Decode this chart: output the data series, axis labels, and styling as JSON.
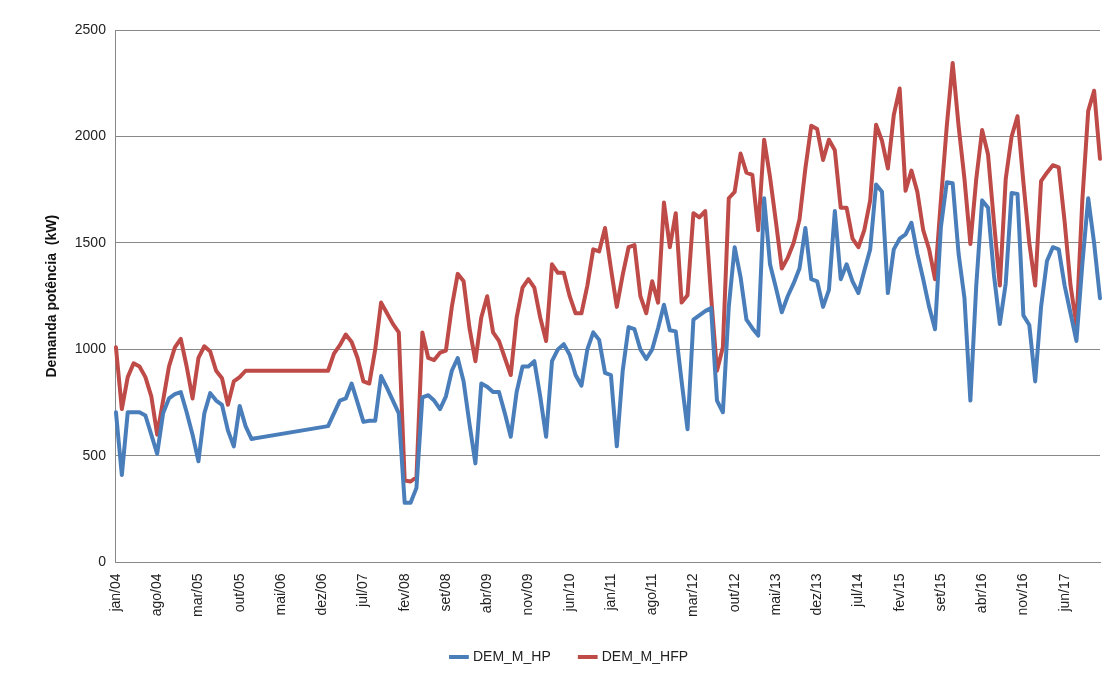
{
  "chart_data": {
    "type": "line",
    "ylabel": "Demanda potência  (kW)",
    "categories": [
      "jan/04",
      null,
      null,
      null,
      null,
      null,
      null,
      "ago/04",
      null,
      null,
      null,
      null,
      null,
      null,
      "mar/05",
      null,
      null,
      null,
      null,
      null,
      null,
      "out/05",
      null,
      null,
      null,
      null,
      null,
      null,
      "mai/06",
      null,
      null,
      null,
      null,
      null,
      null,
      "dez/06",
      null,
      null,
      null,
      null,
      null,
      null,
      "jul/07",
      null,
      null,
      null,
      null,
      null,
      null,
      "fev/08",
      null,
      null,
      null,
      null,
      null,
      null,
      "set/08",
      null,
      null,
      null,
      null,
      null,
      null,
      "abr/09",
      null,
      null,
      null,
      null,
      null,
      null,
      "nov/09",
      null,
      null,
      null,
      null,
      null,
      null,
      "jun/10",
      null,
      null,
      null,
      null,
      null,
      null,
      "jan/11",
      null,
      null,
      null,
      null,
      null,
      null,
      "ago/11",
      null,
      null,
      null,
      null,
      null,
      null,
      "mar/12",
      null,
      null,
      null,
      null,
      null,
      null,
      "out/12",
      null,
      null,
      null,
      null,
      null,
      null,
      "mai/13",
      null,
      null,
      null,
      null,
      null,
      null,
      "dez/13",
      null,
      null,
      null,
      null,
      null,
      null,
      "jul/14",
      null,
      null,
      null,
      null,
      null,
      null,
      "fev/15",
      null,
      null,
      null,
      null,
      null,
      null,
      "set/15",
      null,
      null,
      null,
      null,
      null,
      null,
      "abr/16",
      null,
      null,
      null,
      null,
      null,
      null,
      "nov/16",
      null,
      null,
      null,
      null,
      null,
      null,
      "jun/17",
      null,
      null,
      null,
      null,
      null,
      null
    ],
    "series": [
      {
        "name": "DEM_M_HP",
        "color": "#4a7ebb",
        "values": [
          705,
          410,
          705,
          705,
          705,
          690,
          600,
          510,
          700,
          770,
          790,
          800,
          705,
          600,
          475,
          700,
          795,
          760,
          740,
          620,
          545,
          735,
          640,
          580,
          null,
          null,
          null,
          null,
          null,
          null,
          null,
          null,
          null,
          null,
          null,
          null,
          640,
          700,
          760,
          770,
          840,
          750,
          660,
          665,
          665,
          875,
          820,
          760,
          700,
          280,
          280,
          350,
          775,
          785,
          760,
          720,
          780,
          900,
          960,
          850,
          650,
          465,
          840,
          825,
          800,
          800,
          700,
          590,
          800,
          920,
          920,
          945,
          780,
          590,
          945,
          1000,
          1025,
          975,
          880,
          830,
          1000,
          1080,
          1045,
          890,
          880,
          545,
          900,
          1105,
          1095,
          1000,
          955,
          1000,
          1100,
          1210,
          1090,
          1085,
          850,
          625,
          1140,
          1160,
          1180,
          1195,
          760,
          705,
          1200,
          1480,
          1340,
          1140,
          1100,
          1065,
          1710,
          1400,
          1290,
          1175,
          1250,
          1310,
          1380,
          1570,
          1330,
          1320,
          1200,
          1280,
          1650,
          1330,
          1400,
          1320,
          1265,
          1370,
          1470,
          1775,
          1740,
          1265,
          1470,
          1520,
          1540,
          1595,
          1450,
          1330,
          1200,
          1095,
          1575,
          1785,
          1780,
          1450,
          1240,
          760,
          1300,
          1700,
          1665,
          1350,
          1120,
          1310,
          1735,
          1730,
          1160,
          1115,
          850,
          1200,
          1415,
          1480,
          1470,
          1300,
          1170,
          1040,
          1400,
          1710,
          1500,
          1240
        ]
      },
      {
        "name": "DEM_M_HFP",
        "color": "#be4b48",
        "values": [
          1010,
          720,
          870,
          935,
          920,
          870,
          780,
          600,
          760,
          920,
          1010,
          1050,
          920,
          770,
          960,
          1015,
          990,
          900,
          865,
          740,
          850,
          870,
          900,
          900,
          null,
          null,
          null,
          null,
          null,
          null,
          null,
          null,
          null,
          null,
          null,
          null,
          900,
          980,
          1020,
          1070,
          1035,
          960,
          850,
          840,
          1000,
          1220,
          1170,
          1120,
          1080,
          385,
          380,
          400,
          1080,
          960,
          950,
          985,
          995,
          1200,
          1355,
          1320,
          1100,
          945,
          1150,
          1250,
          1080,
          1040,
          960,
          880,
          1150,
          1290,
          1330,
          1290,
          1150,
          1040,
          1400,
          1360,
          1360,
          1250,
          1170,
          1170,
          1300,
          1470,
          1460,
          1570,
          1380,
          1200,
          1350,
          1480,
          1490,
          1250,
          1170,
          1320,
          1220,
          1690,
          1480,
          1640,
          1220,
          1255,
          1640,
          1620,
          1650,
          1250,
          900,
          1010,
          1710,
          1740,
          1920,
          1830,
          1820,
          1560,
          1985,
          1810,
          1600,
          1380,
          1430,
          1500,
          1610,
          1850,
          2050,
          2035,
          1890,
          1985,
          1935,
          1665,
          1665,
          1520,
          1480,
          1560,
          1700,
          2055,
          1980,
          1850,
          2100,
          2225,
          1745,
          1840,
          1740,
          1560,
          1470,
          1330,
          1700,
          2050,
          2345,
          2050,
          1800,
          1495,
          1800,
          2030,
          1915,
          1600,
          1300,
          1800,
          2000,
          2095,
          1785,
          1500,
          1300,
          1790,
          1830,
          1865,
          1855,
          1600,
          1300,
          1115,
          1700,
          2120,
          2215,
          1895
        ]
      }
    ],
    "ylim": [
      0,
      2500
    ],
    "yticks": [
      0,
      500,
      1000,
      1500,
      2000,
      2500
    ],
    "grid": "y",
    "legend": "bottom",
    "marker": "none",
    "line_style": "solid"
  }
}
